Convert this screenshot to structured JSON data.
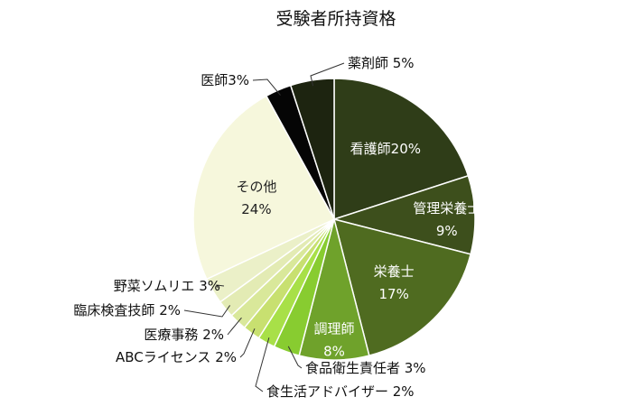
{
  "chart_data": {
    "type": "pie",
    "title": "受験者所持資格",
    "slices": [
      {
        "label": "看護師",
        "value": 20,
        "display": "20%",
        "color": "#2f3d18",
        "label_inside": true
      },
      {
        "label": "管理栄養士",
        "value": 9,
        "display": "9%",
        "color": "#3d4f1c",
        "label_inside": true
      },
      {
        "label": "栄養士",
        "value": 17,
        "display": "17%",
        "color": "#4f6b20",
        "label_inside": true
      },
      {
        "label": "調理師",
        "value": 8,
        "display": "8%",
        "color": "#6fa22b",
        "label_inside": true
      },
      {
        "label": "食品衛生責任者",
        "value": 3,
        "display": "3%",
        "color": "#88cc30",
        "label_inside": false
      },
      {
        "label": "食生活アドバイザー",
        "value": 2,
        "display": "2%",
        "color": "#a8e048",
        "label_inside": false
      },
      {
        "label": "ABCライセンス",
        "value": 2,
        "display": "2%",
        "color": "#c8e070",
        "label_inside": false
      },
      {
        "label": "医療事務",
        "value": 2,
        "display": "2%",
        "color": "#d9e89a",
        "label_inside": false
      },
      {
        "label": "臨床検査技師",
        "value": 2,
        "display": "2%",
        "color": "#e3ebb4",
        "label_inside": false
      },
      {
        "label": "野菜ソムリエ",
        "value": 3,
        "display": "3%",
        "color": "#ebf0c8",
        "label_inside": false
      },
      {
        "label": "その他",
        "value": 24,
        "display": "24%",
        "color": "#f6f7dc",
        "label_inside": true
      },
      {
        "label": "医師",
        "value": 3,
        "display": "3%",
        "color": "#050505",
        "label_inside": false
      },
      {
        "label": "薬剤師",
        "value": 5,
        "display": "5%",
        "color": "#1d2410",
        "label_inside": false
      }
    ]
  }
}
